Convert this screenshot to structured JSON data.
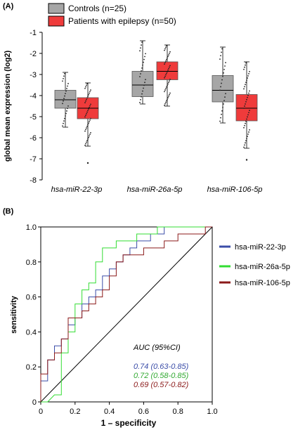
{
  "chart_data": [
    {
      "panel": "(A)",
      "type": "box",
      "ylabel": "global mean expression (log2)",
      "ylim": [
        -8,
        -1
      ],
      "yticks": [
        "-1",
        "-2",
        "-3",
        "-4",
        "-5",
        "-6",
        "-7",
        "-8"
      ],
      "categories": [
        "hsa-miR-22-3p",
        "hsa-miR-26a-5p",
        "hsa-miR-106-5p"
      ],
      "legend": [
        "Controls (n=25)",
        "Patients with epilepsy (n=50)"
      ],
      "series": [
        {
          "name": "Controls (n=25)",
          "color": "#a6a6a6",
          "boxes": [
            {
              "whisker_low": -5.5,
              "q1": -4.6,
              "median": -4.2,
              "q3": -3.75,
              "whisker_high": -2.9,
              "outliers": []
            },
            {
              "whisker_low": -4.4,
              "q1": -4.05,
              "median": -3.5,
              "q3": -2.85,
              "whisker_high": -1.4,
              "outliers": []
            },
            {
              "whisker_low": -5.3,
              "q1": -4.3,
              "median": -3.75,
              "q3": -3.05,
              "whisker_high": -1.7,
              "outliers": []
            }
          ]
        },
        {
          "name": "Patients with epilepsy (n=50)",
          "color": "#ef3b3b",
          "boxes": [
            {
              "whisker_low": -6.4,
              "q1": -5.1,
              "median": -4.6,
              "q3": -4.1,
              "whisker_high": -3.4,
              "outliers": [
                -7.2
              ]
            },
            {
              "whisker_low": -4.5,
              "q1": -3.25,
              "median": -2.85,
              "q3": -2.4,
              "whisker_high": -1.6,
              "outliers": []
            },
            {
              "whisker_low": -6.5,
              "q1": -5.2,
              "median": -4.6,
              "q3": -3.95,
              "whisker_high": -2.4,
              "outliers": [
                -7.05
              ]
            }
          ]
        }
      ]
    },
    {
      "panel": "(B)",
      "type": "line",
      "xlabel": "1 – specificity",
      "ylabel": "sensitivity",
      "xlim": [
        0,
        1
      ],
      "ylim": [
        0,
        1
      ],
      "xticks": [
        "0",
        "0.2",
        "0.4",
        "0.6",
        "0.8",
        "1.0"
      ],
      "yticks": [
        "0",
        "0.2",
        "0.4",
        "0.6",
        "0.8",
        "1.0"
      ],
      "auc_title": "AUC (95%CI)",
      "series": [
        {
          "name": "hsa-miR-22-3p",
          "color": "#3b4da8",
          "auc": "0.74 (0.63-0.85)",
          "points": [
            [
              0,
              0
            ],
            [
              0,
              0.12
            ],
            [
              0.04,
              0.12
            ],
            [
              0.04,
              0.24
            ],
            [
              0.08,
              0.24
            ],
            [
              0.08,
              0.32
            ],
            [
              0.12,
              0.32
            ],
            [
              0.12,
              0.36
            ],
            [
              0.16,
              0.36
            ],
            [
              0.16,
              0.44
            ],
            [
              0.2,
              0.44
            ],
            [
              0.2,
              0.48
            ],
            [
              0.24,
              0.48
            ],
            [
              0.24,
              0.56
            ],
            [
              0.28,
              0.56
            ],
            [
              0.28,
              0.6
            ],
            [
              0.32,
              0.6
            ],
            [
              0.32,
              0.64
            ],
            [
              0.36,
              0.64
            ],
            [
              0.36,
              0.72
            ],
            [
              0.4,
              0.72
            ],
            [
              0.4,
              0.76
            ],
            [
              0.44,
              0.76
            ],
            [
              0.44,
              0.8
            ],
            [
              0.48,
              0.8
            ],
            [
              0.48,
              0.84
            ],
            [
              0.52,
              0.84
            ],
            [
              0.52,
              0.88
            ],
            [
              0.56,
              0.88
            ],
            [
              0.56,
              0.92
            ],
            [
              0.64,
              0.92
            ],
            [
              0.64,
              0.96
            ],
            [
              0.72,
              0.96
            ],
            [
              0.72,
              1
            ],
            [
              1,
              1
            ]
          ]
        },
        {
          "name": "hsa-miR-26a-5p",
          "color": "#33dd33",
          "auc": "0.72 (0.58-0.85)",
          "points": [
            [
              0,
              0
            ],
            [
              0.04,
              0
            ],
            [
              0.08,
              0.04
            ],
            [
              0.12,
              0.04
            ],
            [
              0.12,
              0.28
            ],
            [
              0.16,
              0.28
            ],
            [
              0.16,
              0.4
            ],
            [
              0.2,
              0.4
            ],
            [
              0.2,
              0.56
            ],
            [
              0.24,
              0.56
            ],
            [
              0.24,
              0.64
            ],
            [
              0.28,
              0.64
            ],
            [
              0.28,
              0.68
            ],
            [
              0.32,
              0.68
            ],
            [
              0.32,
              0.8
            ],
            [
              0.36,
              0.8
            ],
            [
              0.36,
              0.88
            ],
            [
              0.44,
              0.88
            ],
            [
              0.44,
              0.92
            ],
            [
              0.56,
              0.92
            ],
            [
              0.56,
              0.96
            ],
            [
              0.68,
              0.96
            ],
            [
              0.68,
              1
            ],
            [
              1,
              1
            ]
          ]
        },
        {
          "name": "hsa-miR-106-5p",
          "color": "#8b1a1a",
          "auc": "0.69 (0.57-0.82)",
          "points": [
            [
              0,
              0
            ],
            [
              0,
              0.16
            ],
            [
              0.04,
              0.16
            ],
            [
              0.04,
              0.24
            ],
            [
              0.08,
              0.24
            ],
            [
              0.08,
              0.28
            ],
            [
              0.12,
              0.28
            ],
            [
              0.12,
              0.36
            ],
            [
              0.16,
              0.36
            ],
            [
              0.16,
              0.48
            ],
            [
              0.24,
              0.48
            ],
            [
              0.24,
              0.52
            ],
            [
              0.28,
              0.52
            ],
            [
              0.28,
              0.56
            ],
            [
              0.32,
              0.56
            ],
            [
              0.32,
              0.6
            ],
            [
              0.36,
              0.6
            ],
            [
              0.36,
              0.64
            ],
            [
              0.4,
              0.64
            ],
            [
              0.4,
              0.72
            ],
            [
              0.44,
              0.72
            ],
            [
              0.44,
              0.8
            ],
            [
              0.48,
              0.8
            ],
            [
              0.48,
              0.84
            ],
            [
              0.6,
              0.84
            ],
            [
              0.6,
              0.88
            ],
            [
              0.72,
              0.88
            ],
            [
              0.72,
              0.92
            ],
            [
              0.8,
              0.92
            ],
            [
              0.8,
              0.96
            ],
            [
              0.96,
              0.96
            ],
            [
              0.96,
              1
            ],
            [
              1,
              1
            ]
          ]
        }
      ]
    }
  ]
}
